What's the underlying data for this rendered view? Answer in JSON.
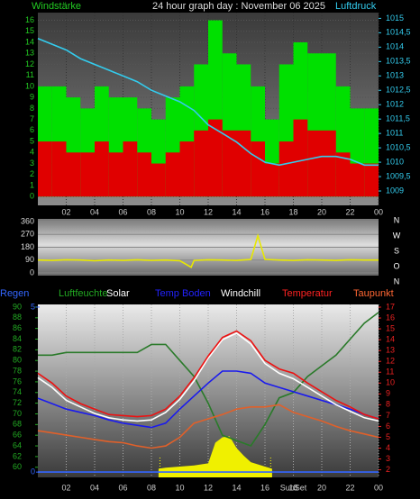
{
  "chart_data": [
    {
      "type": "wind",
      "title": "24 hour graph day : November 06 2025",
      "y_label": "Windstärke",
      "y2_label": "Luftdruck",
      "xlim": [
        0,
        24
      ],
      "xticks": [
        {
          "value": 2,
          "label": "02"
        },
        {
          "value": 4,
          "label": "04"
        },
        {
          "value": 6,
          "label": "06"
        },
        {
          "value": 8,
          "label": "08"
        },
        10,
        12,
        14,
        16,
        18,
        20,
        22,
        {
          "value": 24,
          "label": "00"
        }
      ],
      "ylim": [
        -0.8,
        16.7
      ],
      "yticks": [
        0,
        1,
        2,
        3,
        4,
        5,
        6,
        7,
        8,
        9,
        10,
        11,
        12,
        13,
        14,
        15,
        16
      ],
      "y2lim": [
        1008.5,
        1015.2
      ],
      "y2ticks": [
        1009,
        {
          "value": 1009.5,
          "label": "1009,5"
        },
        1010,
        {
          "value": 1010.5,
          "label": "1010,5"
        },
        1011,
        {
          "value": 1011.5,
          "label": "1011,5"
        },
        1012,
        {
          "value": 1012.5,
          "label": "1012,5"
        },
        1013,
        {
          "value": 1013.5,
          "label": "1013,5"
        },
        1014,
        {
          "value": 1014.5,
          "label": "1014,5"
        },
        1015
      ],
      "grid": true,
      "series": [
        {
          "kind": "bar",
          "color": "#00e000",
          "x": [
            0,
            1,
            2,
            3,
            4,
            5,
            6,
            7,
            8,
            9,
            10,
            11,
            12,
            13,
            14,
            15,
            16,
            17,
            18,
            19,
            20,
            21,
            22,
            23
          ],
          "values": [
            10,
            10,
            9,
            8,
            10,
            9,
            9,
            8,
            7,
            9,
            10,
            12,
            16,
            13,
            12,
            10,
            7,
            12,
            14,
            13,
            13,
            10,
            8,
            8
          ]
        },
        {
          "kind": "bar",
          "color": "#e00000",
          "x": [
            0,
            1,
            2,
            3,
            4,
            5,
            6,
            7,
            8,
            9,
            10,
            11,
            12,
            13,
            14,
            15,
            16,
            17,
            18,
            19,
            20,
            21,
            22,
            23
          ],
          "values": [
            5,
            5,
            4,
            4,
            5,
            4,
            5,
            4,
            3,
            4,
            5,
            6,
            7,
            6,
            6,
            5,
            3,
            5,
            7,
            6,
            6,
            4,
            3,
            3
          ]
        },
        {
          "kind": "line",
          "axis": "y2",
          "color": "#33ccee",
          "x": [
            0,
            1,
            2,
            3,
            4,
            5,
            6,
            7,
            8,
            9,
            10,
            11,
            12,
            13,
            14,
            15,
            16,
            17,
            18,
            19,
            20,
            21,
            22,
            23,
            24
          ],
          "values": [
            1014.3,
            1014.1,
            1013.9,
            1013.6,
            1013.4,
            1013.2,
            1013.0,
            1012.8,
            1012.5,
            1012.3,
            1012.1,
            1011.8,
            1011.3,
            1011.0,
            1010.7,
            1010.3,
            1010.0,
            1009.9,
            1010.0,
            1010.1,
            1010.2,
            1010.2,
            1010.1,
            1009.9,
            1009.9
          ]
        }
      ]
    },
    {
      "type": "direction",
      "xlim": [
        0,
        24
      ],
      "ylim": [
        -19,
        379
      ],
      "yticks": [
        0,
        90,
        180,
        270,
        360
      ],
      "y2_labels": [
        "N",
        "W",
        "S",
        "O",
        "N"
      ],
      "series": [
        {
          "kind": "line",
          "color": "#e8e800",
          "x": [
            0,
            1,
            2,
            3,
            4,
            5,
            6,
            7,
            8,
            9,
            10,
            10.8,
            11,
            12,
            13,
            14,
            15,
            15.5,
            16,
            17,
            18,
            19,
            20,
            21,
            22,
            23,
            24
          ],
          "values": [
            90,
            88,
            92,
            90,
            86,
            90,
            88,
            92,
            88,
            90,
            86,
            40,
            88,
            92,
            90,
            88,
            94,
            260,
            95,
            90,
            88,
            92,
            90,
            88,
            92,
            90,
            90
          ]
        }
      ]
    },
    {
      "type": "weather",
      "xlim": [
        0,
        24
      ],
      "xticks": [
        {
          "value": 2,
          "label": "02"
        },
        {
          "value": 4,
          "label": "04"
        },
        {
          "value": 6,
          "label": "06"
        },
        {
          "value": 8,
          "label": "08"
        },
        10,
        12,
        14,
        16,
        18,
        20,
        22,
        {
          "value": 24,
          "label": "00"
        }
      ],
      "ylim": [
        58.1,
        90.5
      ],
      "yticks": [
        60,
        62,
        64,
        66,
        68,
        70,
        72,
        74,
        76,
        78,
        80,
        82,
        84,
        86,
        88,
        90
      ],
      "y2lim": [
        1.3,
        17.25
      ],
      "y2ticks": [
        2,
        3,
        4,
        5,
        6,
        7,
        8,
        9,
        10,
        11,
        12,
        13,
        14,
        15,
        16,
        17
      ],
      "y3lim": [
        -0.16,
        5.08
      ],
      "y3ticks": [
        0,
        5
      ],
      "annotation": "SunSet",
      "sun_events_x": [
        8.6,
        16.4
      ],
      "series": [
        {
          "name": "Regen",
          "label_color": "#3366ff",
          "color": "#3366ff",
          "kind": "line",
          "axis": "y3",
          "x": [
            0,
            24
          ],
          "values": [
            0,
            0
          ]
        },
        {
          "name": "Luftfeuchte",
          "label_color": "#22aa22",
          "color": "#2a7a2a",
          "kind": "line",
          "axis": "y",
          "x": [
            0,
            1,
            2,
            3,
            4,
            5,
            6,
            7,
            8,
            9,
            10,
            11,
            12,
            13,
            14,
            15,
            16,
            17,
            18,
            19,
            20,
            21,
            22,
            23,
            24
          ],
          "values": [
            81,
            81,
            81.5,
            81.5,
            81.5,
            81.5,
            81.5,
            81.5,
            83,
            83,
            80,
            77,
            72,
            66,
            65,
            64,
            68,
            73,
            74,
            77,
            79,
            81,
            84,
            87,
            89
          ]
        },
        {
          "name": "Solar",
          "label_color": "#ffffff",
          "color": "#f0f000",
          "kind": "area",
          "axis": "y2",
          "x": [
            8.5,
            9,
            10,
            11,
            12,
            12.5,
            13,
            13.5,
            14,
            14.5,
            15,
            16,
            16.5
          ],
          "values": [
            2.1,
            2.2,
            2.3,
            2.4,
            2.6,
            4.5,
            5.0,
            5.1,
            4.0,
            3.3,
            2.7,
            2.3,
            2.1
          ]
        },
        {
          "name": "Temp Boden",
          "label_color": "#2222ff",
          "color": "#1a1aee",
          "kind": "line",
          "axis": "y2",
          "x": [
            0,
            1,
            2,
            3,
            4,
            5,
            6,
            7,
            8,
            9,
            10,
            11,
            12,
            13,
            14,
            15,
            16,
            17,
            18,
            19,
            20,
            21,
            22,
            23,
            24
          ],
          "values": [
            8.6,
            8.1,
            7.6,
            7.3,
            7.0,
            6.6,
            6.3,
            6.1,
            5.9,
            6.3,
            7.6,
            8.8,
            10.0,
            11.1,
            11.1,
            10.9,
            10.0,
            9.6,
            9.2,
            8.8,
            8.4,
            8.0,
            7.6,
            7.1,
            6.7
          ]
        },
        {
          "name": "Windchill",
          "label_color": "#ffffff",
          "color": "#ffffff",
          "kind": "line",
          "axis": "y2",
          "x": [
            0,
            1,
            2,
            3,
            4,
            5,
            6,
            7,
            8,
            9,
            10,
            11,
            12,
            13,
            14,
            15,
            16,
            17,
            18,
            19,
            20,
            21,
            22,
            23,
            24
          ],
          "values": [
            10.5,
            9.6,
            8.4,
            7.8,
            7.2,
            6.8,
            6.6,
            6.5,
            6.6,
            7.3,
            8.5,
            10.2,
            12.3,
            14.0,
            14.6,
            13.6,
            11.8,
            10.9,
            10.4,
            9.6,
            8.8,
            8.0,
            7.4,
            6.8,
            6.5
          ]
        },
        {
          "name": "Temperatur",
          "label_color": "#ff2222",
          "color": "#ee1111",
          "kind": "line",
          "axis": "y2",
          "x": [
            0,
            1,
            2,
            3,
            4,
            5,
            6,
            7,
            8,
            9,
            10,
            11,
            12,
            13,
            14,
            15,
            16,
            17,
            18,
            19,
            20,
            21,
            22,
            23,
            24
          ],
          "values": [
            10.9,
            10.0,
            8.8,
            8.1,
            7.6,
            7.1,
            7.0,
            6.9,
            7.0,
            7.6,
            8.8,
            10.5,
            12.5,
            14.2,
            14.8,
            13.9,
            12.1,
            11.3,
            10.9,
            10.0,
            9.2,
            8.4,
            7.8,
            7.1,
            6.7
          ]
        },
        {
          "name": "Taupunkt",
          "label_color": "#ff6633",
          "color": "#e0602a",
          "kind": "line",
          "axis": "y2",
          "x": [
            0,
            1,
            2,
            3,
            4,
            5,
            6,
            7,
            8,
            9,
            10,
            11,
            12,
            13,
            14,
            15,
            16,
            17,
            18,
            19,
            20,
            21,
            22,
            23,
            24
          ],
          "values": [
            5.6,
            5.4,
            5.2,
            5.0,
            4.8,
            4.6,
            4.5,
            4.2,
            4.0,
            4.2,
            5.0,
            6.3,
            6.7,
            7.1,
            7.6,
            7.8,
            7.8,
            8.0,
            7.3,
            6.9,
            6.5,
            6.0,
            5.6,
            5.3,
            5.0
          ]
        }
      ]
    }
  ]
}
